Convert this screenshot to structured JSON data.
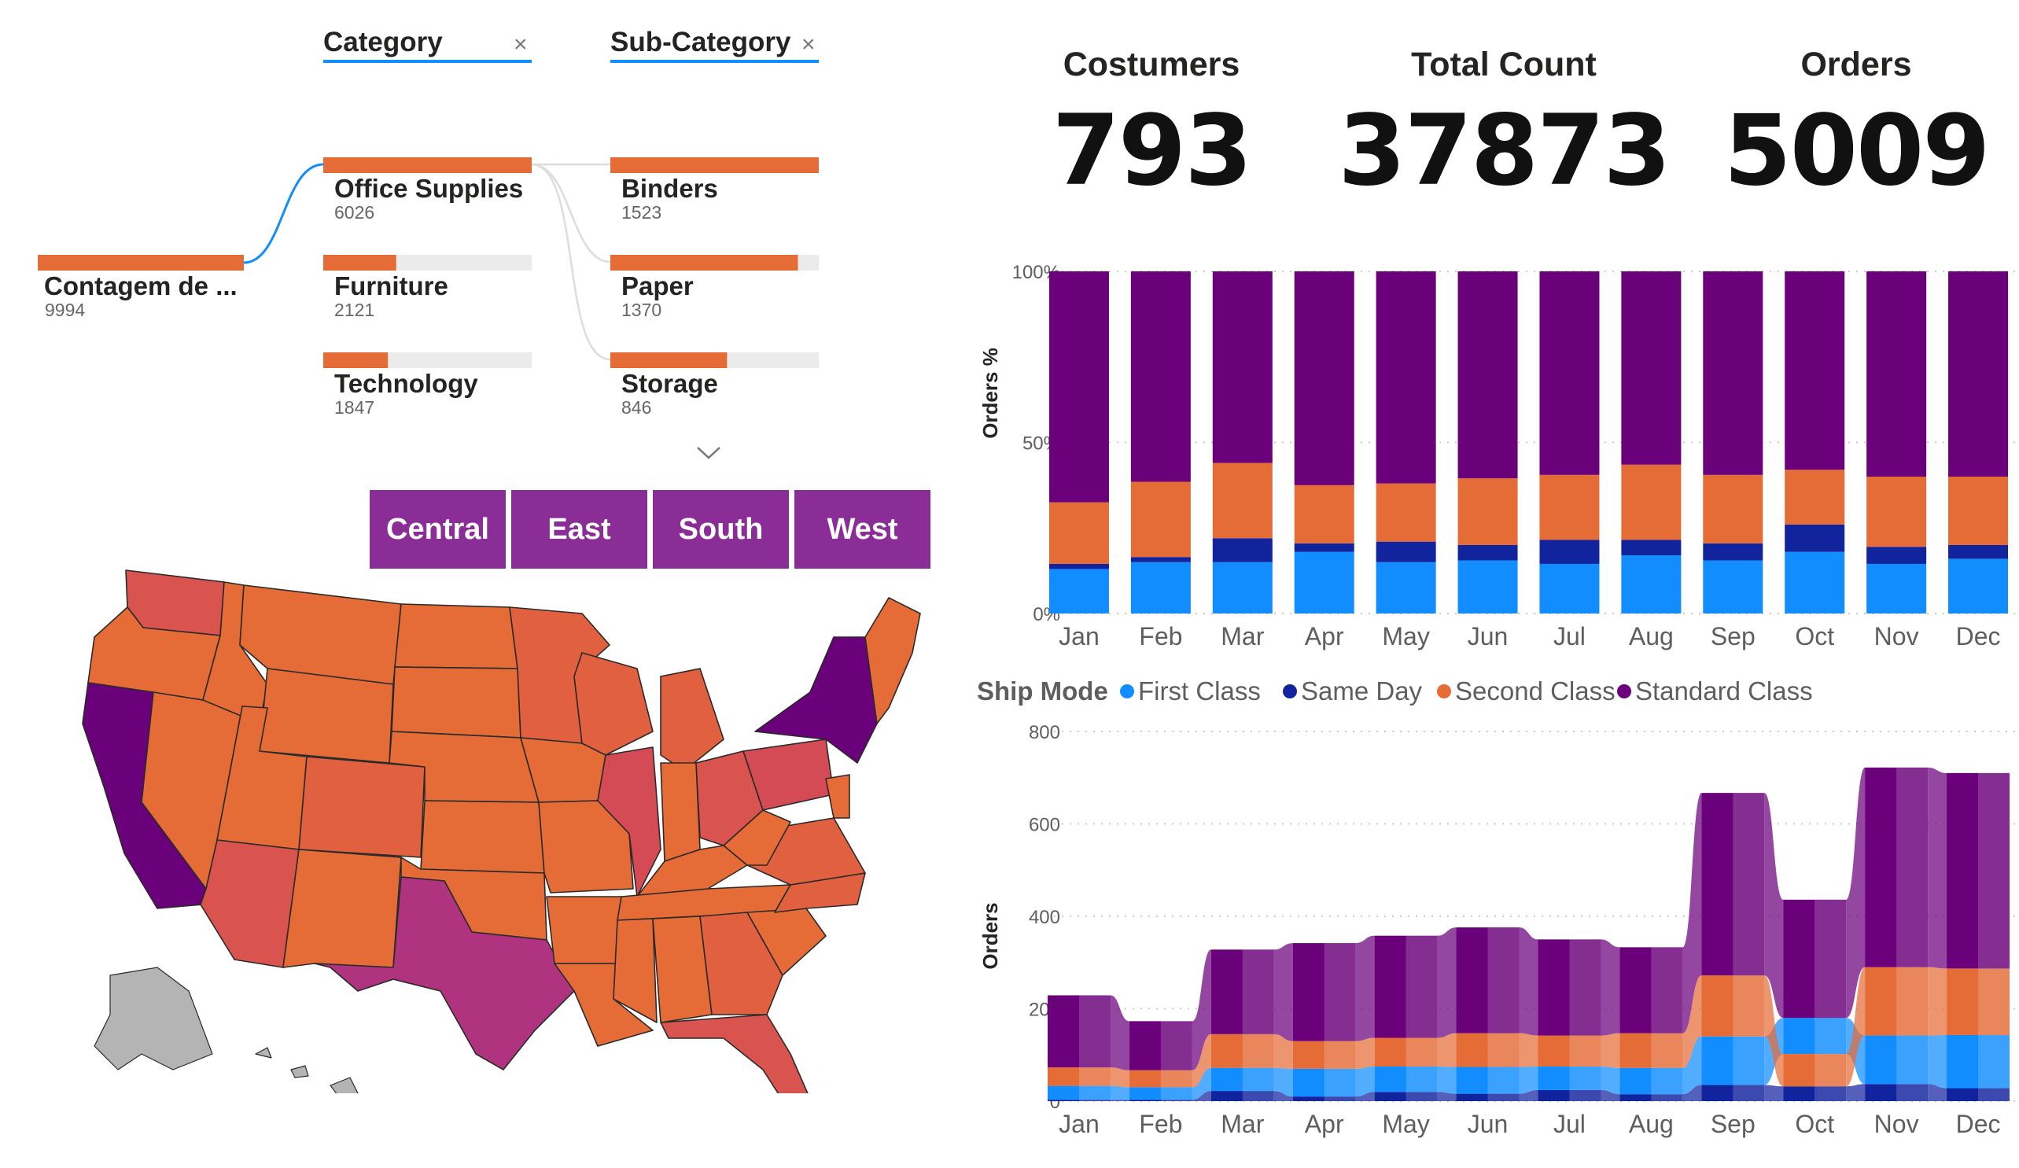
{
  "kpis": [
    {
      "label": "Costumers",
      "value": "793"
    },
    {
      "label": "Total Count",
      "value": "37873"
    },
    {
      "label": "Orders",
      "value": "5009"
    }
  ],
  "filters": {
    "category_label": "Category",
    "subcategory_label": "Sub-Category",
    "close_glyph": "×"
  },
  "regions": [
    "Central",
    "East",
    "South",
    "West"
  ],
  "colors": {
    "first_class": "#118DFF",
    "same_day": "#12239E",
    "second_class": "#E66C37",
    "standard_class": "#6B007B",
    "region_button": "#8A2D96",
    "tree_bar": "#E66C37",
    "tree_track": "#EBEBEB",
    "tree_link_active": "#118DFF"
  },
  "chart_data": [
    {
      "type": "decomposition_tree",
      "root": {
        "label": "Contagem de ...",
        "value": "9994"
      },
      "levels": [
        {
          "name": "Category",
          "nodes": [
            {
              "label": "Office Supplies",
              "value": "6026",
              "share": 1.0
            },
            {
              "label": "Furniture",
              "value": "2121",
              "share": 0.35
            },
            {
              "label": "Technology",
              "value": "1847",
              "share": 0.31
            }
          ]
        },
        {
          "name": "Sub-Category",
          "nodes": [
            {
              "label": "Binders",
              "value": "1523",
              "share": 1.0
            },
            {
              "label": "Paper",
              "value": "1370",
              "share": 0.9
            },
            {
              "label": "Storage",
              "value": "846",
              "share": 0.56
            }
          ]
        }
      ],
      "expand_icon": "chevron-down-icon"
    },
    {
      "type": "choropleth_map",
      "region": "USA",
      "legend": "none",
      "intensity_scale": [
        "#E66C37",
        "#D9534F",
        "#B03380",
        "#6B007B"
      ]
    },
    {
      "type": "bar",
      "stacked": "100%",
      "categories": [
        "Jan",
        "Feb",
        "Mar",
        "Apr",
        "May",
        "Jun",
        "Jul",
        "Aug",
        "Sep",
        "Oct",
        "Nov",
        "Dec"
      ],
      "ylabel": "Orders %",
      "yticks": [
        "0%",
        "50%",
        "100%"
      ],
      "ylim": [
        0,
        100
      ],
      "series": [
        {
          "name": "First Class",
          "values": [
            13,
            15,
            15,
            18,
            15,
            15.5,
            14.5,
            17,
            15.5,
            18,
            14.5,
            16
          ]
        },
        {
          "name": "Same Day",
          "values": [
            1.5,
            1.5,
            7,
            2.5,
            6,
            4.5,
            7,
            4.5,
            5,
            8,
            5,
            4
          ]
        },
        {
          "name": "Second Class",
          "values": [
            18,
            22,
            22,
            17,
            17,
            19.5,
            19,
            22,
            20,
            16,
            20.5,
            20
          ]
        },
        {
          "name": "Standard Class",
          "values": [
            67.5,
            61.5,
            56,
            62.5,
            62,
            60.5,
            59.5,
            56.5,
            59.5,
            58,
            60,
            60
          ]
        }
      ]
    },
    {
      "type": "area",
      "subtype": "ribbon",
      "legend_title": "Ship Mode",
      "legend_position": "top-left",
      "categories": [
        "Jan",
        "Feb",
        "Mar",
        "Apr",
        "May",
        "Jun",
        "Jul",
        "Aug",
        "Sep",
        "Oct",
        "Nov",
        "Dec"
      ],
      "ylabel": "Orders",
      "yticks": [
        0,
        200,
        400,
        600,
        800
      ],
      "ylim": [
        0,
        800
      ],
      "grid": true,
      "series": [
        {
          "name": "Same Day",
          "values": [
            3,
            3,
            22,
            10,
            20,
            16,
            24,
            15,
            35,
            32,
            37,
            28
          ]
        },
        {
          "name": "First Class",
          "values": [
            30,
            27,
            50,
            60,
            55,
            58,
            51,
            57,
            105,
            78,
            105,
            115
          ]
        },
        {
          "name": "Second Class",
          "values": [
            40,
            37,
            73,
            60,
            62,
            73,
            67,
            75,
            132,
            70,
            148,
            144
          ]
        },
        {
          "name": "Standard Class",
          "values": [
            156,
            106,
            183,
            212,
            221,
            229,
            208,
            186,
            395,
            256,
            432,
            423
          ]
        }
      ]
    }
  ]
}
